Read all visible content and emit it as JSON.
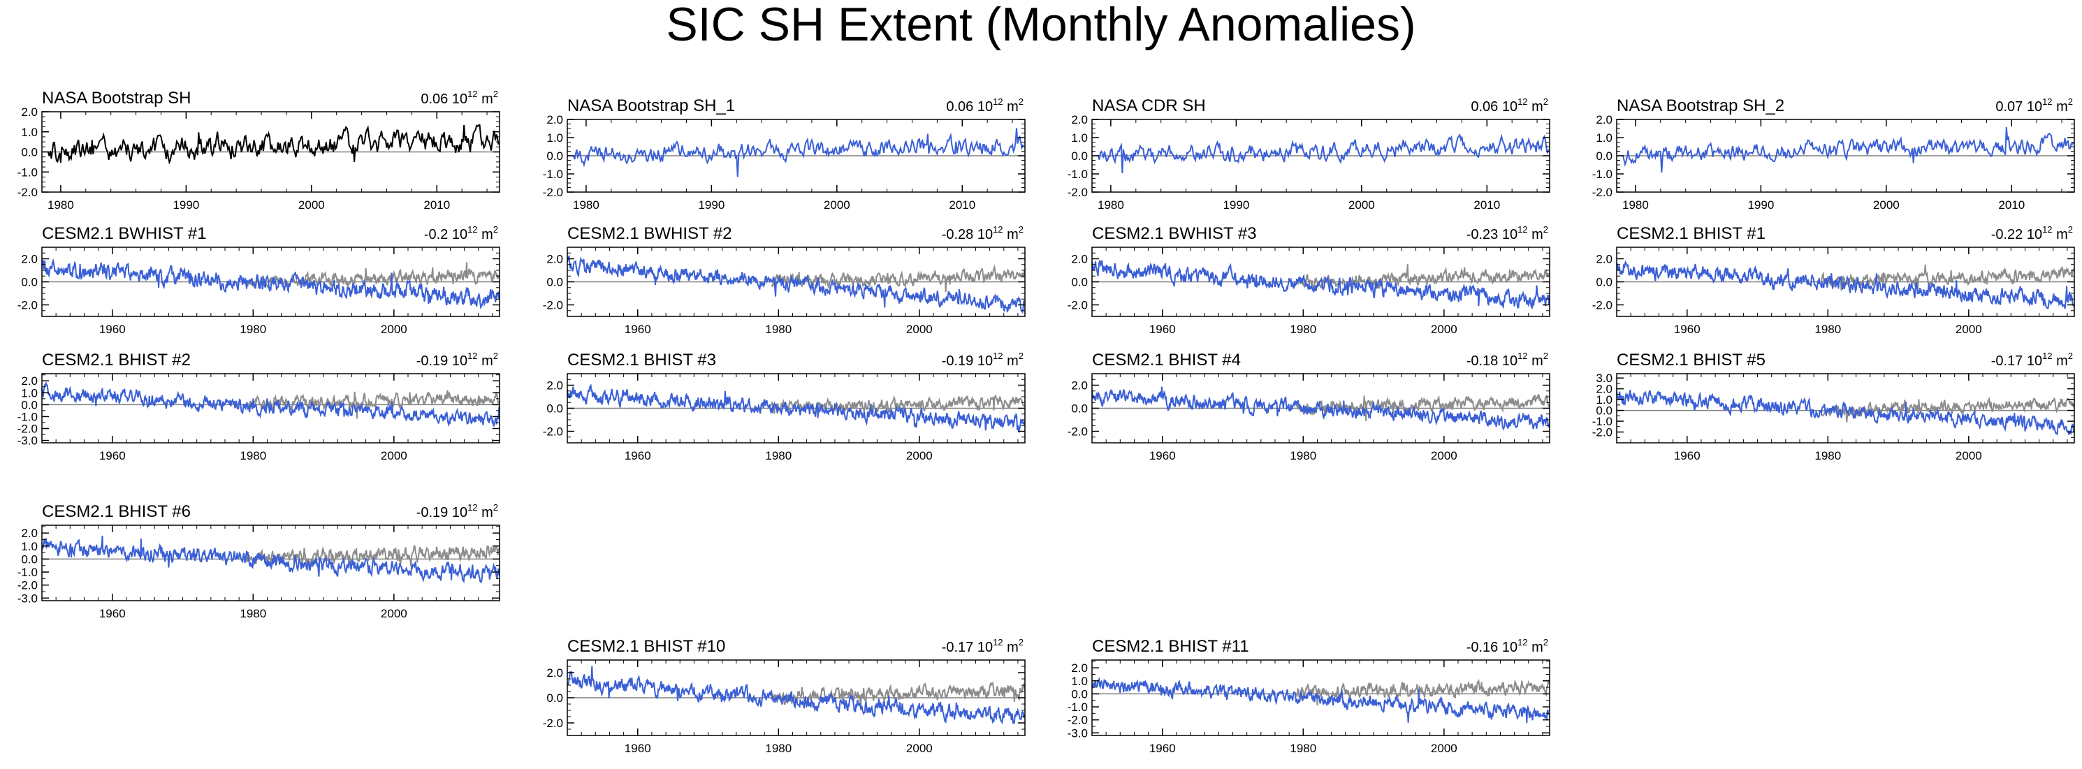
{
  "figure_title": "SIC SH Extent (Monthly Anomalies)",
  "colors": {
    "obs": "#000000",
    "model": "#3a5fd6",
    "obs_overlay": "#8c8c8c",
    "axis": "#000000",
    "zero_line": "#7f7f7f"
  },
  "units": {
    "base": "10",
    "exp": "12",
    "unit": "m",
    "unit_exp": "2"
  },
  "chart_data": [
    {
      "type": "line",
      "title": "NASA Bootstrap SH",
      "trend": "0.06",
      "kind": "obs",
      "color": "#000000",
      "x_range": [
        1978.5,
        2015.0
      ],
      "ylim": [
        -2.0,
        2.0
      ],
      "yticks": [
        "2.0",
        "1.0",
        "0.0",
        "-1.0",
        "-2.0"
      ],
      "xticks": [
        "1980",
        "1990",
        "2000",
        "2010"
      ],
      "series": {
        "start": 1979,
        "end": 2014,
        "seed": 11,
        "trend_start": 0.0,
        "trend_end": 0.6,
        "amp": 0.55
      }
    },
    {
      "type": "line",
      "title": "NASA Bootstrap SH_1",
      "trend": "0.06",
      "kind": "obs",
      "color": "#3a5fd6",
      "x_range": [
        1978.5,
        2015.0
      ],
      "ylim": [
        -2.0,
        2.0
      ],
      "yticks": [
        "2.0",
        "1.0",
        "0.0",
        "-1.0",
        "-2.0"
      ],
      "xticks": [
        "1980",
        "1990",
        "2000",
        "2010"
      ],
      "series": {
        "start": 1979,
        "end": 2014,
        "seed": 12,
        "trend_start": 0.0,
        "trend_end": 0.6,
        "amp": 0.45
      }
    },
    {
      "type": "line",
      "title": "NASA CDR SH",
      "trend": "0.06",
      "kind": "obs",
      "color": "#3a5fd6",
      "x_range": [
        1978.5,
        2015.0
      ],
      "ylim": [
        -2.0,
        2.0
      ],
      "yticks": [
        "2.0",
        "1.0",
        "0.0",
        "-1.0",
        "-2.0"
      ],
      "xticks": [
        "1980",
        "1990",
        "2000",
        "2010"
      ],
      "series": {
        "start": 1979,
        "end": 2014,
        "seed": 13,
        "trend_start": 0.0,
        "trend_end": 0.6,
        "amp": 0.45
      }
    },
    {
      "type": "line",
      "title": "NASA Bootstrap SH_2",
      "trend": "0.07",
      "kind": "obs",
      "color": "#3a5fd6",
      "x_range": [
        1978.5,
        2015.0
      ],
      "ylim": [
        -2.0,
        2.0
      ],
      "yticks": [
        "2.0",
        "1.0",
        "0.0",
        "-1.0",
        "-2.0"
      ],
      "xticks": [
        "1980",
        "1990",
        "2000",
        "2010"
      ],
      "series": {
        "start": 1979,
        "end": 2014,
        "seed": 14,
        "trend_start": 0.0,
        "trend_end": 0.65,
        "amp": 0.45
      }
    },
    {
      "type": "line",
      "title": "CESM2.1 BWHIST #1",
      "trend": "-0.2",
      "kind": "model",
      "color": "#3a5fd6",
      "x_range": [
        1950,
        2015
      ],
      "ylim": [
        -3.0,
        3.0
      ],
      "yticks": [
        "2.0",
        "0.0",
        "-2.0"
      ],
      "xticks": [
        "1960",
        "1980",
        "2000"
      ],
      "series": {
        "start": 1950,
        "end": 2014,
        "seed": 21,
        "trend_start": 1.2,
        "trend_end": -1.5,
        "amp": 0.7
      }
    },
    {
      "type": "line",
      "title": "CESM2.1 BWHIST #2",
      "trend": "-0.28",
      "kind": "model",
      "color": "#3a5fd6",
      "x_range": [
        1950,
        2015
      ],
      "ylim": [
        -3.0,
        3.0
      ],
      "yticks": [
        "2.0",
        "0.0",
        "-2.0"
      ],
      "xticks": [
        "1960",
        "1980",
        "2000"
      ],
      "series": {
        "start": 1950,
        "end": 2014,
        "seed": 22,
        "trend_start": 1.5,
        "trend_end": -2.0,
        "amp": 0.6
      }
    },
    {
      "type": "line",
      "title": "CESM2.1 BWHIST #3",
      "trend": "-0.23",
      "kind": "model",
      "color": "#3a5fd6",
      "x_range": [
        1950,
        2015
      ],
      "ylim": [
        -3.0,
        3.0
      ],
      "yticks": [
        "2.0",
        "0.0",
        "-2.0"
      ],
      "xticks": [
        "1960",
        "1980",
        "2000"
      ],
      "series": {
        "start": 1950,
        "end": 2014,
        "seed": 23,
        "trend_start": 1.2,
        "trend_end": -1.7,
        "amp": 0.65
      }
    },
    {
      "type": "line",
      "title": "CESM2.1 BHIST #1",
      "trend": "-0.22",
      "kind": "model",
      "color": "#3a5fd6",
      "x_range": [
        1950,
        2015
      ],
      "ylim": [
        -3.0,
        3.0
      ],
      "yticks": [
        "2.0",
        "0.0",
        "-2.0"
      ],
      "xticks": [
        "1960",
        "1980",
        "2000"
      ],
      "series": {
        "start": 1950,
        "end": 2014,
        "seed": 24,
        "trend_start": 1.2,
        "trend_end": -1.6,
        "amp": 0.65
      }
    },
    {
      "type": "line",
      "title": "CESM2.1 BHIST #2",
      "trend": "-0.19",
      "kind": "model",
      "color": "#3a5fd6",
      "x_range": [
        1950,
        2015
      ],
      "ylim": [
        -3.2,
        2.6
      ],
      "yticks": [
        "2.0",
        "1.0",
        "0.0",
        "-1.0",
        "-2.0",
        "-3.0"
      ],
      "xticks": [
        "1960",
        "1980",
        "2000"
      ],
      "series": {
        "start": 1950,
        "end": 2014,
        "seed": 31,
        "trend_start": 1.0,
        "trend_end": -1.3,
        "amp": 0.55
      }
    },
    {
      "type": "line",
      "title": "CESM2.1 BHIST #3",
      "trend": "-0.19",
      "kind": "model",
      "color": "#3a5fd6",
      "x_range": [
        1950,
        2015
      ],
      "ylim": [
        -3.0,
        3.0
      ],
      "yticks": [
        "2.0",
        "0.0",
        "-2.0"
      ],
      "xticks": [
        "1960",
        "1980",
        "2000"
      ],
      "series": {
        "start": 1950,
        "end": 2014,
        "seed": 32,
        "trend_start": 1.2,
        "trend_end": -1.3,
        "amp": 0.6
      }
    },
    {
      "type": "line",
      "title": "CESM2.1 BHIST #4",
      "trend": "-0.18",
      "kind": "model",
      "color": "#3a5fd6",
      "x_range": [
        1950,
        2015
      ],
      "ylim": [
        -3.0,
        3.0
      ],
      "yticks": [
        "2.0",
        "0.0",
        "-2.0"
      ],
      "xticks": [
        "1960",
        "1980",
        "2000"
      ],
      "series": {
        "start": 1950,
        "end": 2014,
        "seed": 33,
        "trend_start": 1.1,
        "trend_end": -1.3,
        "amp": 0.6
      }
    },
    {
      "type": "line",
      "title": "CESM2.1 BHIST #5",
      "trend": "-0.17",
      "kind": "model",
      "color": "#3a5fd6",
      "x_range": [
        1950,
        2015
      ],
      "ylim": [
        -3.0,
        3.4
      ],
      "yticks": [
        "3.0",
        "2.0",
        "1.0",
        "0.0",
        "-1.0",
        "-2.0"
      ],
      "xticks": [
        "1960",
        "1980",
        "2000"
      ],
      "series": {
        "start": 1950,
        "end": 2014,
        "seed": 34,
        "trend_start": 1.3,
        "trend_end": -1.4,
        "amp": 0.6
      }
    },
    {
      "type": "line",
      "title": "CESM2.1 BHIST #6",
      "trend": "-0.19",
      "kind": "model",
      "color": "#3a5fd6",
      "x_range": [
        1950,
        2015
      ],
      "ylim": [
        -3.2,
        2.6
      ],
      "yticks": [
        "2.0",
        "1.0",
        "0.0",
        "-1.0",
        "-2.0",
        "-3.0"
      ],
      "xticks": [
        "1960",
        "1980",
        "2000"
      ],
      "series": {
        "start": 1950,
        "end": 2014,
        "seed": 41,
        "trend_start": 1.0,
        "trend_end": -1.2,
        "amp": 0.55
      }
    },
    {
      "type": "line",
      "title": "CESM2.1 BHIST #10",
      "trend": "-0.17",
      "kind": "model",
      "color": "#3a5fd6",
      "x_range": [
        1950,
        2015
      ],
      "ylim": [
        -3.0,
        3.0
      ],
      "yticks": [
        "2.0",
        "0.0",
        "-2.0"
      ],
      "xticks": [
        "1960",
        "1980",
        "2000"
      ],
      "series": {
        "start": 1950,
        "end": 2014,
        "seed": 51,
        "trend_start": 1.3,
        "trend_end": -1.6,
        "amp": 0.6
      }
    },
    {
      "type": "line",
      "title": "CESM2.1 BHIST #11",
      "trend": "-0.16",
      "kind": "model",
      "color": "#3a5fd6",
      "x_range": [
        1950,
        2015
      ],
      "ylim": [
        -3.2,
        2.6
      ],
      "yticks": [
        "2.0",
        "1.0",
        "0.0",
        "-1.0",
        "-2.0",
        "-3.0"
      ],
      "xticks": [
        "1960",
        "1980",
        "2000"
      ],
      "series": {
        "start": 1950,
        "end": 2014,
        "seed": 52,
        "trend_start": 0.8,
        "trend_end": -1.6,
        "amp": 0.5
      }
    }
  ]
}
